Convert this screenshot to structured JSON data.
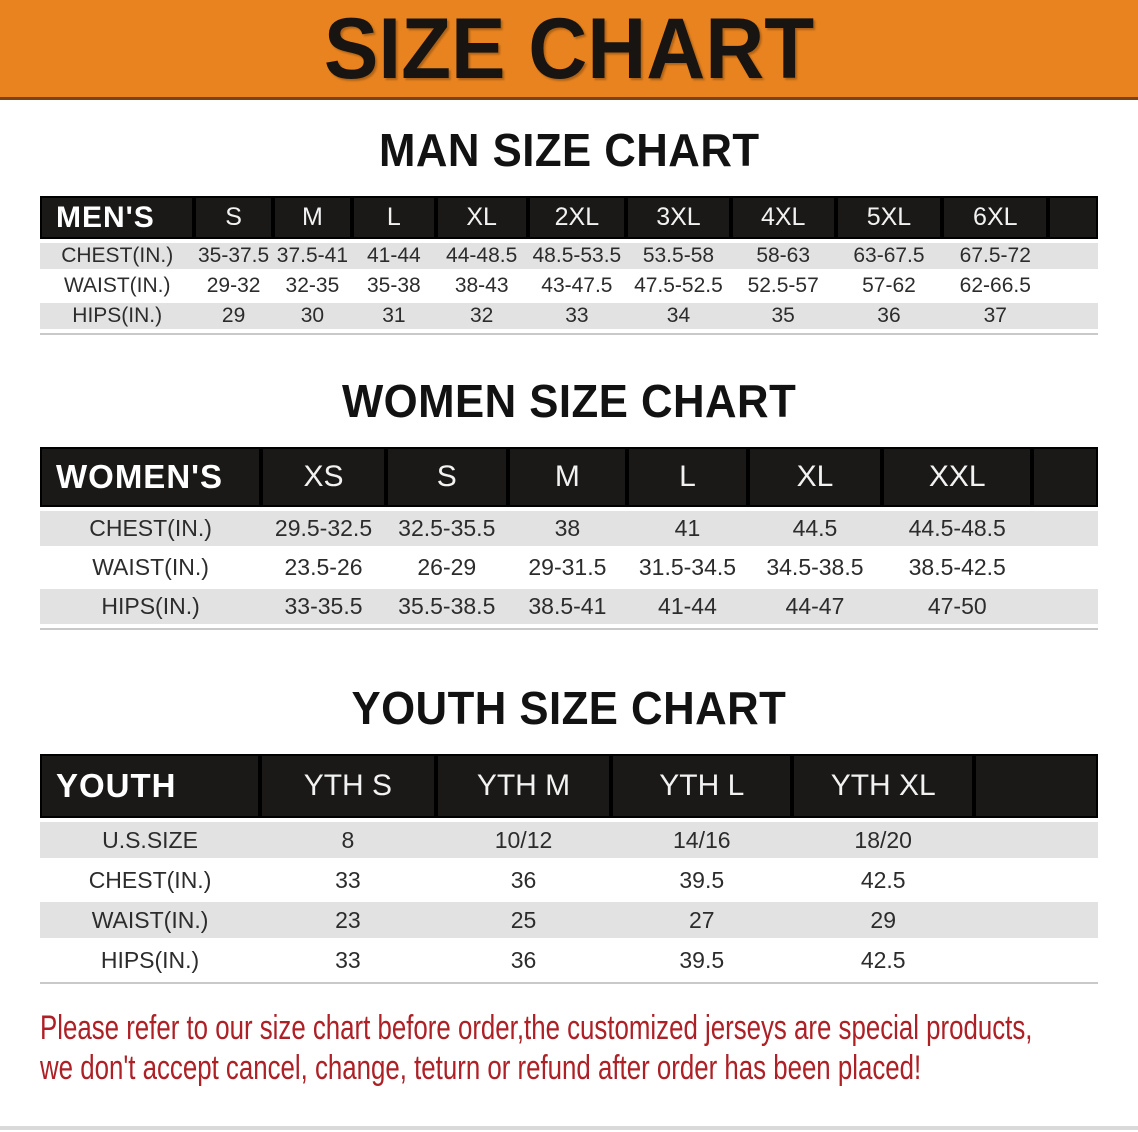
{
  "banner": {
    "title": "SIZE CHART",
    "bg_color": "#E8831F"
  },
  "sections": [
    {
      "title": "MAN SIZE CHART",
      "table": {
        "header_label": "MEN'S",
        "columns": [
          "S",
          "M",
          "L",
          "XL",
          "2XL",
          "3XL",
          "4XL",
          "5XL",
          "6XL"
        ],
        "rows": [
          {
            "label": "CHEST(IN.)",
            "values": [
              "35-37.5",
              "37.5-41",
              "41-44",
              "44-48.5",
              "48.5-53.5",
              "53.5-58",
              "58-63",
              "63-67.5",
              "67.5-72"
            ]
          },
          {
            "label": "WAIST(IN.)",
            "values": [
              "29-32",
              "32-35",
              "35-38",
              "38-43",
              "43-47.5",
              "47.5-52.5",
              "52.5-57",
              "57-62",
              "62-66.5"
            ]
          },
          {
            "label": "HIPS(IN.)",
            "values": [
              "29",
              "30",
              "31",
              "32",
              "33",
              "34",
              "35",
              "36",
              "37"
            ]
          }
        ]
      }
    },
    {
      "title": "WOMEN SIZE CHART",
      "table": {
        "header_label": "WOMEN'S",
        "columns": [
          "XS",
          "S",
          "M",
          "L",
          "XL",
          "XXL"
        ],
        "rows": [
          {
            "label": "CHEST(IN.)",
            "values": [
              "29.5-32.5",
              "32.5-35.5",
              "38",
              "41",
              "44.5",
              "44.5-48.5"
            ]
          },
          {
            "label": "WAIST(IN.)",
            "values": [
              "23.5-26",
              "26-29",
              "29-31.5",
              "31.5-34.5",
              "34.5-38.5",
              "38.5-42.5"
            ]
          },
          {
            "label": "HIPS(IN.)",
            "values": [
              "33-35.5",
              "35.5-38.5",
              "38.5-41",
              "41-44",
              "44-47",
              "47-50"
            ]
          }
        ]
      }
    },
    {
      "title": "YOUTH SIZE CHART",
      "table": {
        "header_label": "YOUTH",
        "columns": [
          "YTH S",
          "YTH M",
          "YTH L",
          "YTH XL"
        ],
        "rows": [
          {
            "label": "U.S.SIZE",
            "values": [
              "8",
              "10/12",
              "14/16",
              "18/20"
            ]
          },
          {
            "label": "CHEST(IN.)",
            "values": [
              "33",
              "36",
              "39.5",
              "42.5"
            ]
          },
          {
            "label": "WAIST(IN.)",
            "values": [
              "23",
              "25",
              "27",
              "29"
            ]
          },
          {
            "label": "HIPS(IN.)",
            "values": [
              "33",
              "36",
              "39.5",
              "42.5"
            ]
          }
        ]
      }
    }
  ],
  "disclaimer": {
    "line1": "Please refer to our size chart before order,the customized jerseys are special products,",
    "line2": "we don't accept cancel, change, teturn or refund after order has been placed!",
    "color": "#AD2026"
  },
  "colors": {
    "header_bar": "#1B1917",
    "row_stripe": "#E3E2E2"
  }
}
